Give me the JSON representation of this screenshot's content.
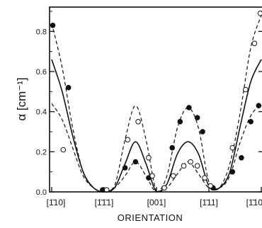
{
  "chart_data": {
    "type": "line",
    "title": "",
    "xlabel": "ORIENTATION",
    "ylabel": "α [cm⁻¹]",
    "ylim": [
      0,
      0.9
    ],
    "yticks": [
      "0.0",
      "0.2",
      "0.4",
      "0.6",
      "0.8"
    ],
    "ytick_values": [
      0,
      0.2,
      0.4,
      0.6,
      0.8
    ],
    "xticks": [
      "[1̄10]",
      "[1̄1̄1]",
      "[001]",
      "[1̄11]",
      "[1̄10]"
    ],
    "xtick_values": [
      0,
      1,
      2,
      3,
      4
    ],
    "xlim": [
      0,
      4
    ],
    "grid": false,
    "legend": "none",
    "series": [
      {
        "style": "dashed",
        "x": [
          0,
          0.2,
          0.4,
          0.6,
          0.8,
          1.0,
          1.2,
          1.4,
          1.6,
          1.8,
          2.0,
          2.2,
          2.4,
          2.6,
          2.8,
          3.0,
          3.2,
          3.4,
          3.6,
          3.8,
          4.0
        ],
        "values": [
          0.84,
          0.62,
          0.32,
          0.1,
          0.02,
          0.0,
          0.02,
          0.08,
          0.15,
          0.08,
          0.0,
          0.08,
          0.32,
          0.42,
          0.32,
          0.05,
          0.02,
          0.08,
          0.25,
          0.38,
          0.44
        ]
      },
      {
        "style": "solid",
        "x": [
          0,
          0.2,
          0.4,
          0.6,
          0.8,
          1.0,
          1.2,
          1.4,
          1.6,
          1.8,
          2.0,
          2.2,
          2.4,
          2.6,
          2.8,
          3.0,
          3.2,
          3.4,
          3.6,
          3.8,
          4.0
        ],
        "values": [
          0.66,
          0.5,
          0.28,
          0.1,
          0.02,
          0.0,
          0.02,
          0.14,
          0.25,
          0.14,
          0.0,
          0.04,
          0.19,
          0.25,
          0.19,
          0.03,
          0.02,
          0.1,
          0.33,
          0.55,
          0.66
        ]
      },
      {
        "style": "dashed",
        "x": [
          0,
          0.2,
          0.4,
          0.6,
          0.8,
          1.0,
          1.2,
          1.4,
          1.6,
          1.8,
          2.0,
          2.2,
          2.4,
          2.6,
          2.8,
          3.0,
          3.2,
          3.4,
          3.6,
          3.8,
          4.0
        ],
        "values": [
          0.44,
          0.36,
          0.22,
          0.08,
          0.02,
          0.0,
          0.03,
          0.26,
          0.43,
          0.26,
          0.0,
          0.02,
          0.09,
          0.15,
          0.09,
          0.02,
          0.02,
          0.14,
          0.4,
          0.72,
          0.88
        ]
      }
    ],
    "points": [
      {
        "marker": "filled",
        "x": 0.02,
        "y": 0.83
      },
      {
        "marker": "filled",
        "x": 0.32,
        "y": 0.52
      },
      {
        "marker": "filled",
        "x": 0.97,
        "y": 0.01
      },
      {
        "marker": "filled",
        "x": 1.4,
        "y": 0.12
      },
      {
        "marker": "filled",
        "x": 1.6,
        "y": 0.15
      },
      {
        "marker": "filled",
        "x": 1.85,
        "y": 0.07
      },
      {
        "marker": "filled",
        "x": 2.3,
        "y": 0.22
      },
      {
        "marker": "filled",
        "x": 2.45,
        "y": 0.35
      },
      {
        "marker": "filled",
        "x": 2.62,
        "y": 0.42
      },
      {
        "marker": "filled",
        "x": 2.78,
        "y": 0.37
      },
      {
        "marker": "filled",
        "x": 2.88,
        "y": 0.3
      },
      {
        "marker": "filled",
        "x": 3.08,
        "y": 0.02
      },
      {
        "marker": "filled",
        "x": 3.45,
        "y": 0.1
      },
      {
        "marker": "filled",
        "x": 3.62,
        "y": 0.17
      },
      {
        "marker": "filled",
        "x": 3.8,
        "y": 0.35
      },
      {
        "marker": "filled",
        "x": 3.95,
        "y": 0.43
      },
      {
        "marker": "open",
        "x": 0.22,
        "y": 0.21
      },
      {
        "marker": "open",
        "x": 1.05,
        "y": 0.01
      },
      {
        "marker": "open",
        "x": 1.45,
        "y": 0.26
      },
      {
        "marker": "open",
        "x": 1.65,
        "y": 0.35
      },
      {
        "marker": "open",
        "x": 1.85,
        "y": 0.17
      },
      {
        "marker": "open",
        "x": 1.92,
        "y": 0.08
      },
      {
        "marker": "open",
        "x": 2.15,
        "y": 0.02
      },
      {
        "marker": "open",
        "x": 2.32,
        "y": 0.08
      },
      {
        "marker": "open",
        "x": 2.52,
        "y": 0.13
      },
      {
        "marker": "open",
        "x": 2.65,
        "y": 0.15
      },
      {
        "marker": "open",
        "x": 2.78,
        "y": 0.13
      },
      {
        "marker": "open",
        "x": 2.92,
        "y": 0.07
      },
      {
        "marker": "open",
        "x": 3.03,
        "y": 0.03
      },
      {
        "marker": "open",
        "x": 3.45,
        "y": 0.22
      },
      {
        "marker": "open",
        "x": 3.7,
        "y": 0.51
      },
      {
        "marker": "open",
        "x": 3.87,
        "y": 0.74
      },
      {
        "marker": "open",
        "x": 3.98,
        "y": 0.89
      }
    ]
  }
}
